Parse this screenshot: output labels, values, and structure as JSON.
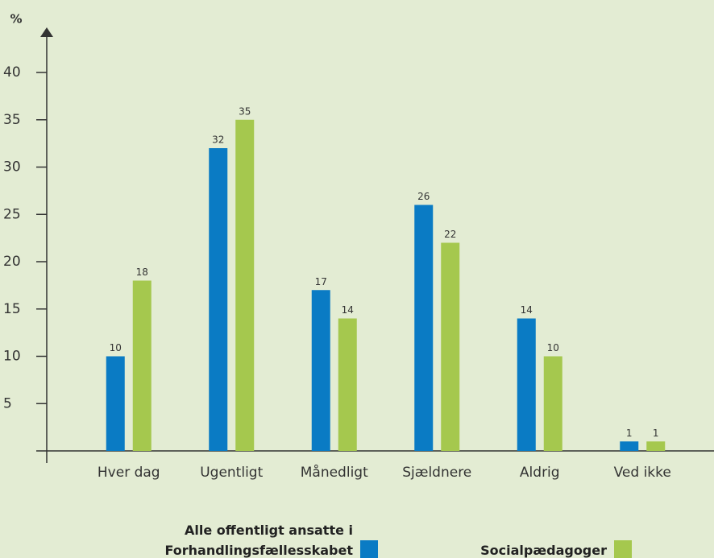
{
  "chart_data": {
    "type": "bar",
    "y_label": "%",
    "categories": [
      "Hver dag",
      "Ugentligt",
      "Månedligt",
      "Sjældnere",
      "Aldrig",
      "Ved ikke"
    ],
    "series": [
      {
        "name": "Alle offentligt ansatte i Forhandlingsfællesskabet",
        "color": "#0a7bc4",
        "values": [
          10,
          32,
          17,
          26,
          14,
          1
        ]
      },
      {
        "name": "Socialpædagoger",
        "color": "#a5c84e",
        "values": [
          18,
          35,
          14,
          22,
          10,
          1
        ]
      }
    ],
    "ylim": [
      0,
      44
    ],
    "yticks": [
      5,
      10,
      15,
      20,
      25,
      30,
      35,
      40
    ]
  }
}
